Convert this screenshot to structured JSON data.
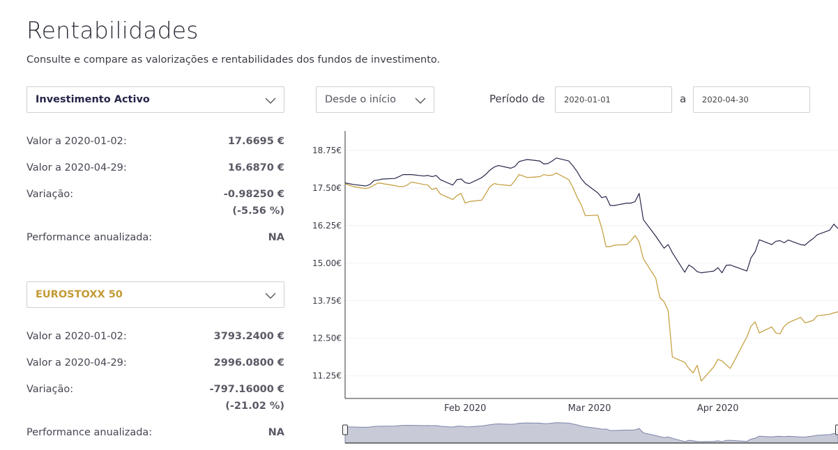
{
  "page": {
    "title": "Rentabilidades",
    "subtitle": "Consulte e compare as valorizações e rentabilidades dos fundos de investimento."
  },
  "controls": {
    "fund_select": "Investimento Activo",
    "index_select": "EUROSTOXX 50",
    "range_select": "Desde o início",
    "period_label": "Período de",
    "to_label": "a",
    "date_from": "2020-01-01",
    "date_to": "2020-04-30"
  },
  "fund_stats": {
    "start_label": "Valor a 2020-01-02:",
    "start_value": "17.6695 €",
    "end_label": "Valor a 2020-04-29:",
    "end_value": "16.6870 €",
    "variation_label": "Variação:",
    "variation_value": "-0.98250 €",
    "variation_pct": "(-5.56 %)",
    "perf_label": "Performance anualizada:",
    "perf_value": "NA"
  },
  "index_stats": {
    "start_label": "Valor a 2020-01-02:",
    "start_value": "3793.2400 €",
    "end_label": "Valor a 2020-04-29:",
    "end_value": "2996.0800 €",
    "variation_label": "Variação:",
    "variation_value": "-797.16000 €",
    "variation_pct": "(-21.02 %)",
    "perf_label": "Performance anualizada:",
    "perf_value": "NA"
  },
  "colors": {
    "fund": "#26264a",
    "index": "#c29a35",
    "navigator_fill": "#c8cad8"
  },
  "chart_data": {
    "type": "line",
    "ylim": [
      10.5,
      19.4
    ],
    "y_ticks": [
      "18.75€",
      "17.50€",
      "16.25€",
      "15.00€",
      "13.75€",
      "12.50€",
      "11.25€"
    ],
    "y_tick_values": [
      18.75,
      17.5,
      16.25,
      15.0,
      13.75,
      12.5,
      11.25
    ],
    "x_ticks": [
      "Feb 2020",
      "Mar 2020",
      "Apr 2020"
    ],
    "x_tick_positions": [
      30,
      60,
      91
    ],
    "xlim": [
      1,
      120
    ],
    "x_unit": "day of year 2020",
    "series": [
      {
        "color": "#26264a",
        "x": [
          1,
          3,
          6,
          7,
          8,
          9,
          10,
          13,
          14,
          15,
          16,
          17,
          20,
          21,
          22,
          23,
          24,
          27,
          28,
          29,
          30,
          31,
          34,
          35,
          36,
          37,
          38,
          41,
          42,
          43,
          44,
          45,
          48,
          49,
          50,
          51,
          52,
          55,
          56,
          57,
          58,
          59,
          62,
          63,
          64,
          65,
          66,
          69,
          70,
          71,
          72,
          73,
          76,
          77,
          78,
          79,
          80,
          83,
          84,
          85,
          86,
          87,
          90,
          91,
          92,
          93,
          94,
          98,
          99,
          100,
          101,
          104,
          105,
          106,
          107,
          108,
          111,
          112,
          113,
          114,
          115,
          118,
          119,
          120
        ],
        "y": [
          17.67,
          17.62,
          17.57,
          17.62,
          17.75,
          17.77,
          17.8,
          17.82,
          17.88,
          17.95,
          17.95,
          17.95,
          17.9,
          17.92,
          17.88,
          17.92,
          17.78,
          17.6,
          17.78,
          17.8,
          17.68,
          17.65,
          17.85,
          17.96,
          18.1,
          18.2,
          18.25,
          18.16,
          18.22,
          18.38,
          18.42,
          18.45,
          18.4,
          18.3,
          18.32,
          18.4,
          18.5,
          18.4,
          18.24,
          18.05,
          17.82,
          17.65,
          17.34,
          17.18,
          17.22,
          16.92,
          16.92,
          17.0,
          17.0,
          17.05,
          17.32,
          16.45,
          15.9,
          15.7,
          15.5,
          15.62,
          15.35,
          14.7,
          14.94,
          14.85,
          14.72,
          14.68,
          14.74,
          14.85,
          14.68,
          14.93,
          14.94,
          14.74,
          15.18,
          15.38,
          15.78,
          15.62,
          15.73,
          15.75,
          15.68,
          15.77,
          15.62,
          15.6,
          15.72,
          15.82,
          15.95,
          16.1,
          16.3,
          16.15
        ]
      },
      {
        "color": "#c29a35",
        "x": [
          1,
          3,
          6,
          7,
          8,
          9,
          10,
          13,
          14,
          15,
          16,
          17,
          20,
          21,
          22,
          23,
          24,
          27,
          28,
          29,
          30,
          31,
          34,
          35,
          36,
          37,
          38,
          41,
          42,
          43,
          44,
          45,
          48,
          49,
          50,
          51,
          52,
          55,
          56,
          57,
          58,
          59,
          62,
          63,
          64,
          65,
          66,
          69,
          70,
          71,
          72,
          73,
          76,
          77,
          78,
          79,
          80,
          83,
          84,
          85,
          86,
          87,
          90,
          91,
          92,
          93,
          94,
          98,
          99,
          100,
          101,
          104,
          105,
          106,
          107,
          108,
          111,
          112,
          113,
          114,
          115,
          118,
          119,
          120
        ],
        "y": [
          17.64,
          17.55,
          17.48,
          17.52,
          17.6,
          17.67,
          17.65,
          17.58,
          17.55,
          17.55,
          17.6,
          17.7,
          17.62,
          17.6,
          17.45,
          17.5,
          17.3,
          17.12,
          17.25,
          17.32,
          17.0,
          17.05,
          17.1,
          17.32,
          17.55,
          17.65,
          17.62,
          17.58,
          17.75,
          17.95,
          17.9,
          17.85,
          17.88,
          17.95,
          17.92,
          17.93,
          18.0,
          17.78,
          17.52,
          17.2,
          16.95,
          16.58,
          16.6,
          16.15,
          15.55,
          15.55,
          15.6,
          15.62,
          15.75,
          15.92,
          15.7,
          15.15,
          14.5,
          13.85,
          13.72,
          13.42,
          11.88,
          11.7,
          11.5,
          11.35,
          11.6,
          11.08,
          11.55,
          11.8,
          11.75,
          11.62,
          11.5,
          12.55,
          12.9,
          13.05,
          12.68,
          12.88,
          12.68,
          12.65,
          12.9,
          13.02,
          13.2,
          13.02,
          13.05,
          13.1,
          13.25,
          13.3,
          13.35,
          13.38
        ]
      }
    ]
  }
}
